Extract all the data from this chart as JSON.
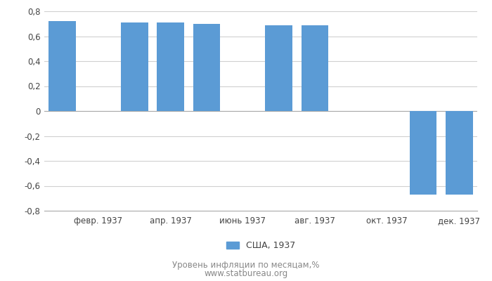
{
  "bar_positions": [
    1,
    3,
    4,
    5,
    7,
    8,
    11,
    12
  ],
  "values": [
    0.72,
    0.71,
    0.71,
    0.7,
    0.69,
    0.69,
    -0.67,
    -0.67
  ],
  "tick_positions": [
    2,
    4,
    6,
    8,
    10,
    12
  ],
  "tick_labels": [
    "февр. 1937",
    "апр. 1937",
    "июнь 1937",
    "авг. 1937",
    "окт. 1937",
    "дек. 1937"
  ],
  "bar_color": "#5b9bd5",
  "ylim": [
    -0.8,
    0.8
  ],
  "yticks": [
    -0.8,
    -0.6,
    -0.4,
    -0.2,
    0.0,
    0.2,
    0.4,
    0.6,
    0.8
  ],
  "ytick_labels": [
    "-0,8",
    "-0,6",
    "-0,4",
    "-0,2",
    "0",
    "0,2",
    "0,4",
    "0,6",
    "0,8"
  ],
  "legend_label": "США, 1937",
  "footer_line1": "Уровень инфляции по месяцам,%",
  "footer_line2": "www.statbureau.org",
  "background_color": "#ffffff",
  "grid_color": "#d0d0d0",
  "bar_width": 0.75
}
